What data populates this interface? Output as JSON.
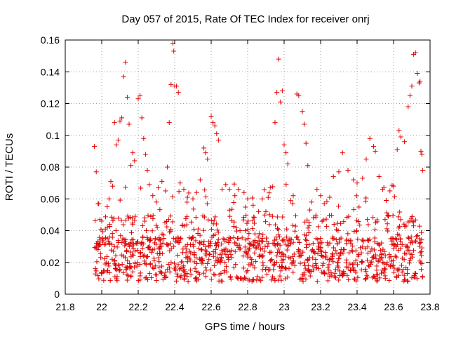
{
  "chart_data": {
    "type": "scatter",
    "title": "Day 057 of 2015, Rate Of TEC Index for receiver onrj",
    "xlabel": "GPS time / hours",
    "ylabel": "ROTI / TECUs",
    "xlim": [
      21.8,
      23.8
    ],
    "ylim": [
      0,
      0.16
    ],
    "xticks": [
      "21.8",
      "22",
      "22.2",
      "22.4",
      "22.6",
      "22.8",
      "23",
      "23.2",
      "23.4",
      "23.6",
      "23.8"
    ],
    "yticks": [
      "0",
      "0.02",
      "0.04",
      "0.06",
      "0.08",
      "0.1",
      "0.12",
      "0.14",
      "0.16"
    ],
    "grid": true,
    "marker": "plus",
    "color": "#e00000",
    "x_range_of_points": [
      21.96,
      23.76
    ],
    "series": [
      {
        "name": "ROTI",
        "points": [
          [
            21.96,
            0.093
          ],
          [
            21.97,
            0.077
          ],
          [
            21.98,
            0.057
          ],
          [
            21.99,
            0.047
          ],
          [
            22.0,
            0.046
          ],
          [
            22.02,
            0.041
          ],
          [
            22.03,
            0.055
          ],
          [
            22.04,
            0.06
          ],
          [
            22.05,
            0.071
          ],
          [
            22.06,
            0.068
          ],
          [
            22.07,
            0.108
          ],
          [
            22.08,
            0.094
          ],
          [
            22.09,
            0.097
          ],
          [
            22.1,
            0.109
          ],
          [
            22.11,
            0.111
          ],
          [
            22.12,
            0.137
          ],
          [
            22.13,
            0.146
          ],
          [
            22.14,
            0.124
          ],
          [
            22.15,
            0.107
          ],
          [
            22.16,
            0.081
          ],
          [
            22.17,
            0.089
          ],
          [
            22.18,
            0.084
          ],
          [
            22.2,
            0.123
          ],
          [
            22.21,
            0.125
          ],
          [
            22.22,
            0.111
          ],
          [
            22.23,
            0.098
          ],
          [
            22.24,
            0.088
          ],
          [
            22.25,
            0.078
          ],
          [
            22.26,
            0.069
          ],
          [
            22.28,
            0.062
          ],
          [
            22.3,
            0.058
          ],
          [
            22.31,
            0.067
          ],
          [
            22.33,
            0.071
          ],
          [
            22.35,
            0.065
          ],
          [
            22.36,
            0.08
          ],
          [
            22.37,
            0.108
          ],
          [
            22.38,
            0.132
          ],
          [
            22.39,
            0.158
          ],
          [
            22.395,
            0.153
          ],
          [
            22.4,
            0.131
          ],
          [
            22.41,
            0.131
          ],
          [
            22.42,
            0.127
          ],
          [
            22.43,
            0.07
          ],
          [
            22.45,
            0.066
          ],
          [
            22.47,
            0.061
          ],
          [
            22.5,
            0.06
          ],
          [
            22.52,
            0.064
          ],
          [
            22.54,
            0.072
          ],
          [
            22.56,
            0.092
          ],
          [
            22.57,
            0.089
          ],
          [
            22.58,
            0.085
          ],
          [
            22.6,
            0.112
          ],
          [
            22.61,
            0.108
          ],
          [
            22.62,
            0.106
          ],
          [
            22.63,
            0.101
          ],
          [
            22.64,
            0.097
          ],
          [
            22.66,
            0.066
          ],
          [
            22.68,
            0.069
          ],
          [
            22.7,
            0.066
          ],
          [
            22.73,
            0.062
          ],
          [
            22.75,
            0.066
          ],
          [
            22.78,
            0.064
          ],
          [
            22.8,
            0.06
          ],
          [
            22.83,
            0.056
          ],
          [
            22.86,
            0.052
          ],
          [
            22.88,
            0.06
          ],
          [
            22.9,
            0.052
          ],
          [
            22.92,
            0.05
          ],
          [
            22.95,
            0.108
          ],
          [
            22.96,
            0.127
          ],
          [
            22.97,
            0.148
          ],
          [
            22.98,
            0.121
          ],
          [
            22.99,
            0.128
          ],
          [
            23.0,
            0.094
          ],
          [
            23.01,
            0.089
          ],
          [
            23.02,
            0.082
          ],
          [
            23.05,
            0.062
          ],
          [
            23.07,
            0.126
          ],
          [
            23.08,
            0.125
          ],
          [
            23.1,
            0.115
          ],
          [
            23.11,
            0.107
          ],
          [
            23.12,
            0.095
          ],
          [
            23.13,
            0.081
          ],
          [
            23.15,
            0.058
          ],
          [
            23.18,
            0.066
          ],
          [
            23.2,
            0.062
          ],
          [
            23.22,
            0.057
          ],
          [
            23.25,
            0.061
          ],
          [
            23.27,
            0.074
          ],
          [
            23.3,
            0.077
          ],
          [
            23.32,
            0.089
          ],
          [
            23.35,
            0.078
          ],
          [
            23.38,
            0.072
          ],
          [
            23.4,
            0.07
          ],
          [
            23.43,
            0.073
          ],
          [
            23.45,
            0.085
          ],
          [
            23.47,
            0.098
          ],
          [
            23.49,
            0.093
          ],
          [
            23.5,
            0.09
          ],
          [
            23.52,
            0.074
          ],
          [
            23.54,
            0.066
          ],
          [
            23.56,
            0.059
          ],
          [
            23.58,
            0.065
          ],
          [
            23.6,
            0.068
          ],
          [
            23.62,
            0.091
          ],
          [
            23.63,
            0.103
          ],
          [
            23.64,
            0.099
          ],
          [
            23.66,
            0.096
          ],
          [
            23.68,
            0.118
          ],
          [
            23.69,
            0.125
          ],
          [
            23.7,
            0.131
          ],
          [
            23.71,
            0.151
          ],
          [
            23.72,
            0.152
          ],
          [
            23.73,
            0.139
          ],
          [
            23.74,
            0.133
          ],
          [
            23.745,
            0.134
          ],
          [
            23.75,
            0.09
          ],
          [
            23.755,
            0.088
          ],
          [
            23.76,
            0.078
          ]
        ]
      }
    ]
  }
}
